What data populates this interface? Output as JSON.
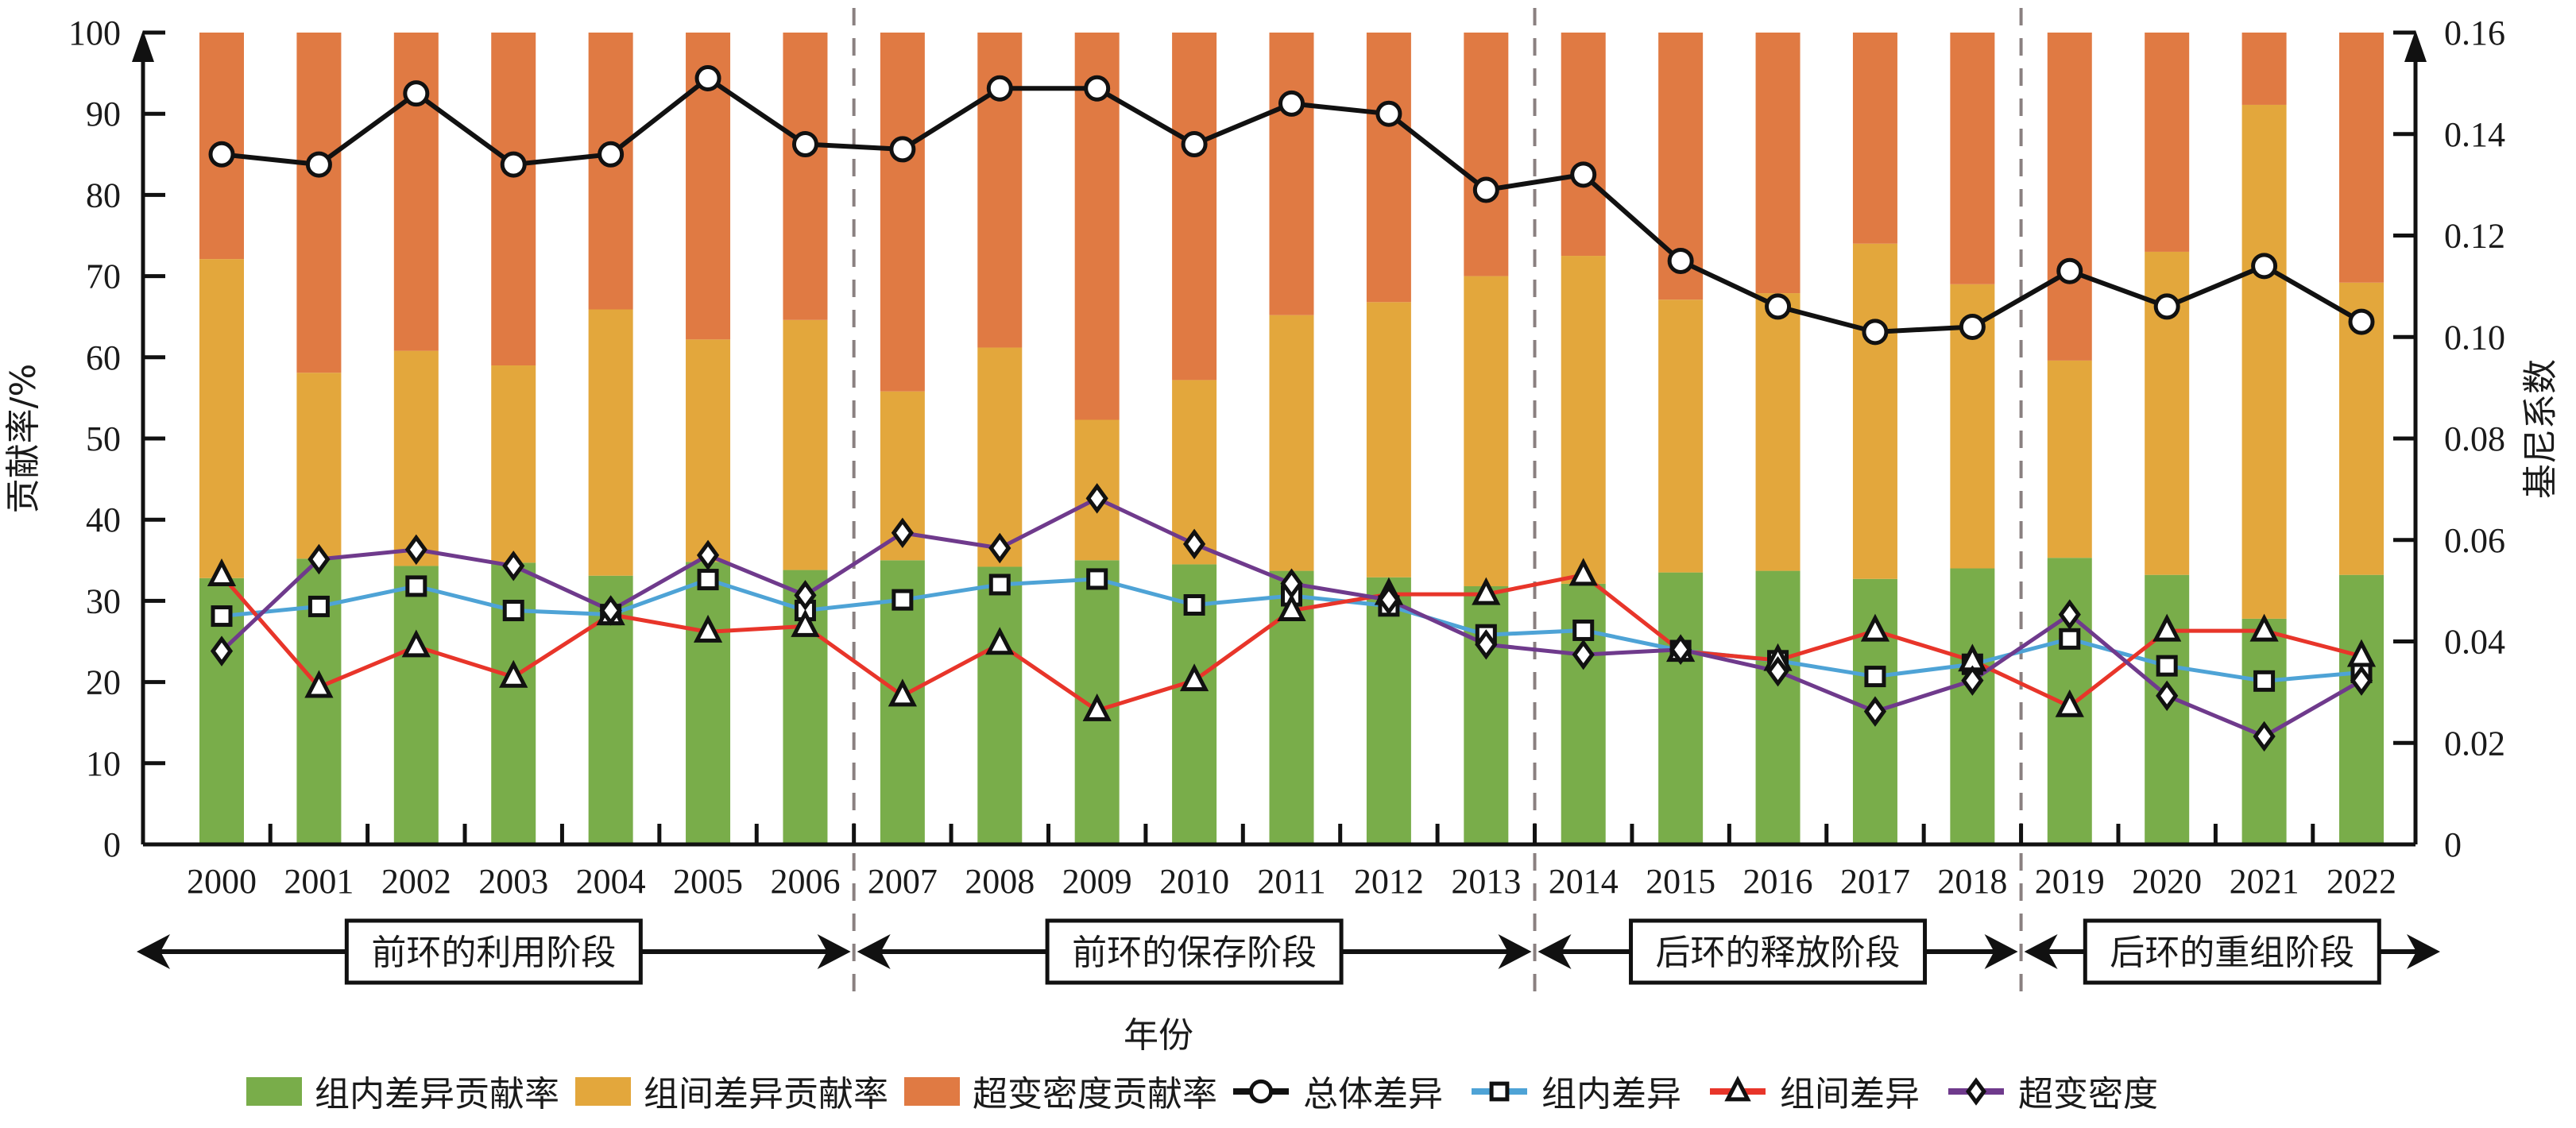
{
  "chart_data": {
    "type": "bar",
    "subtype": "stacked-bar-with-lines",
    "title": "",
    "xlabel": "年份",
    "ylabel": "贡献率/%",
    "y2label": "基尼系数",
    "ylim": [
      0,
      100
    ],
    "y2lim": [
      0,
      0.16
    ],
    "yticks": [
      "0",
      "10",
      "20",
      "30",
      "40",
      "50",
      "60",
      "70",
      "80",
      "90",
      "100"
    ],
    "y2ticks": [
      "0",
      "0.02",
      "0.04",
      "0.06",
      "0.08",
      "0.10",
      "0.12",
      "0.14",
      "0.16"
    ],
    "grid": false,
    "legend_position": "bottom",
    "categories": [
      "2000",
      "2001",
      "2002",
      "2003",
      "2004",
      "2005",
      "2006",
      "2007",
      "2008",
      "2009",
      "2010",
      "2011",
      "2012",
      "2013",
      "2014",
      "2015",
      "2016",
      "2017",
      "2018",
      "2019",
      "2020",
      "2021",
      "2022"
    ],
    "bar_series": [
      {
        "name": "组内差异贡献率",
        "color": "#79ad4a",
        "values": [
          32.8,
          35.2,
          34.3,
          34.7,
          33.1,
          34.8,
          33.8,
          35.0,
          34.2,
          35.0,
          34.5,
          33.7,
          32.9,
          31.8,
          32.1,
          33.5,
          33.7,
          32.7,
          34.0,
          35.3,
          33.2,
          27.8,
          33.2
        ]
      },
      {
        "name": "组间差异贡献率",
        "color": "#e3a73c",
        "values": [
          39.3,
          22.9,
          26.5,
          24.3,
          32.8,
          27.4,
          30.8,
          20.8,
          27.0,
          17.3,
          22.7,
          31.5,
          33.9,
          38.2,
          40.4,
          33.6,
          34.2,
          41.3,
          35.0,
          24.3,
          39.8,
          63.3,
          36.0
        ]
      },
      {
        "name": "超变密度贡献率",
        "color": "#e07a43",
        "values": [
          27.9,
          41.9,
          39.2,
          41.0,
          34.1,
          37.8,
          35.4,
          44.2,
          38.8,
          47.7,
          42.8,
          34.8,
          33.2,
          30.0,
          27.5,
          32.9,
          32.1,
          26.0,
          31.0,
          40.4,
          27.0,
          8.9,
          30.8
        ]
      }
    ],
    "line_series": [
      {
        "name": "总体差异",
        "color": "#111111",
        "marker": "circle",
        "axis": "right",
        "values": [
          0.136,
          0.134,
          0.148,
          0.134,
          0.136,
          0.151,
          0.138,
          0.137,
          0.149,
          0.149,
          0.138,
          0.146,
          0.144,
          0.129,
          0.132,
          0.115,
          0.106,
          0.101,
          0.102,
          0.113,
          0.106,
          0.114,
          0.103
        ]
      },
      {
        "name": "组内差异",
        "color": "#4ea3d6",
        "marker": "square",
        "axis": "right",
        "values": [
          0.045,
          0.0469,
          0.0509,
          0.0461,
          0.0453,
          0.0522,
          0.0461,
          0.0482,
          0.0512,
          0.0523,
          0.0472,
          0.049,
          0.047,
          0.0413,
          0.0422,
          0.0382,
          0.0362,
          0.0331,
          0.0355,
          0.0405,
          0.0352,
          0.0322,
          0.0339
        ]
      },
      {
        "name": "组间差异",
        "color": "#e8352a",
        "marker": "triangle",
        "axis": "right",
        "values": [
          0.053,
          0.031,
          0.039,
          0.033,
          0.0453,
          0.0419,
          0.043,
          0.0293,
          0.0395,
          0.0264,
          0.0323,
          0.0461,
          0.0493,
          0.0493,
          0.0531,
          0.0381,
          0.0363,
          0.0421,
          0.0362,
          0.0272,
          0.0421,
          0.0421,
          0.0371
        ]
      },
      {
        "name": "超变密度",
        "color": "#6f3a8c",
        "marker": "diamond",
        "axis": "right",
        "values": [
          0.0381,
          0.0562,
          0.0581,
          0.0549,
          0.0461,
          0.057,
          0.0491,
          0.0614,
          0.0584,
          0.0682,
          0.0592,
          0.0514,
          0.0482,
          0.0394,
          0.0374,
          0.0384,
          0.0341,
          0.0262,
          0.0323,
          0.0453,
          0.0293,
          0.0213,
          0.0323
        ]
      }
    ],
    "stages": [
      {
        "label": "前环的利用阶段",
        "from": "2000",
        "to": "2006"
      },
      {
        "label": "前环的保存阶段",
        "from": "2007",
        "to": "2013"
      },
      {
        "label": "后环的释放阶段",
        "from": "2014",
        "to": "2018"
      },
      {
        "label": "后环的重组阶段",
        "from": "2019",
        "to": "2022"
      }
    ]
  }
}
